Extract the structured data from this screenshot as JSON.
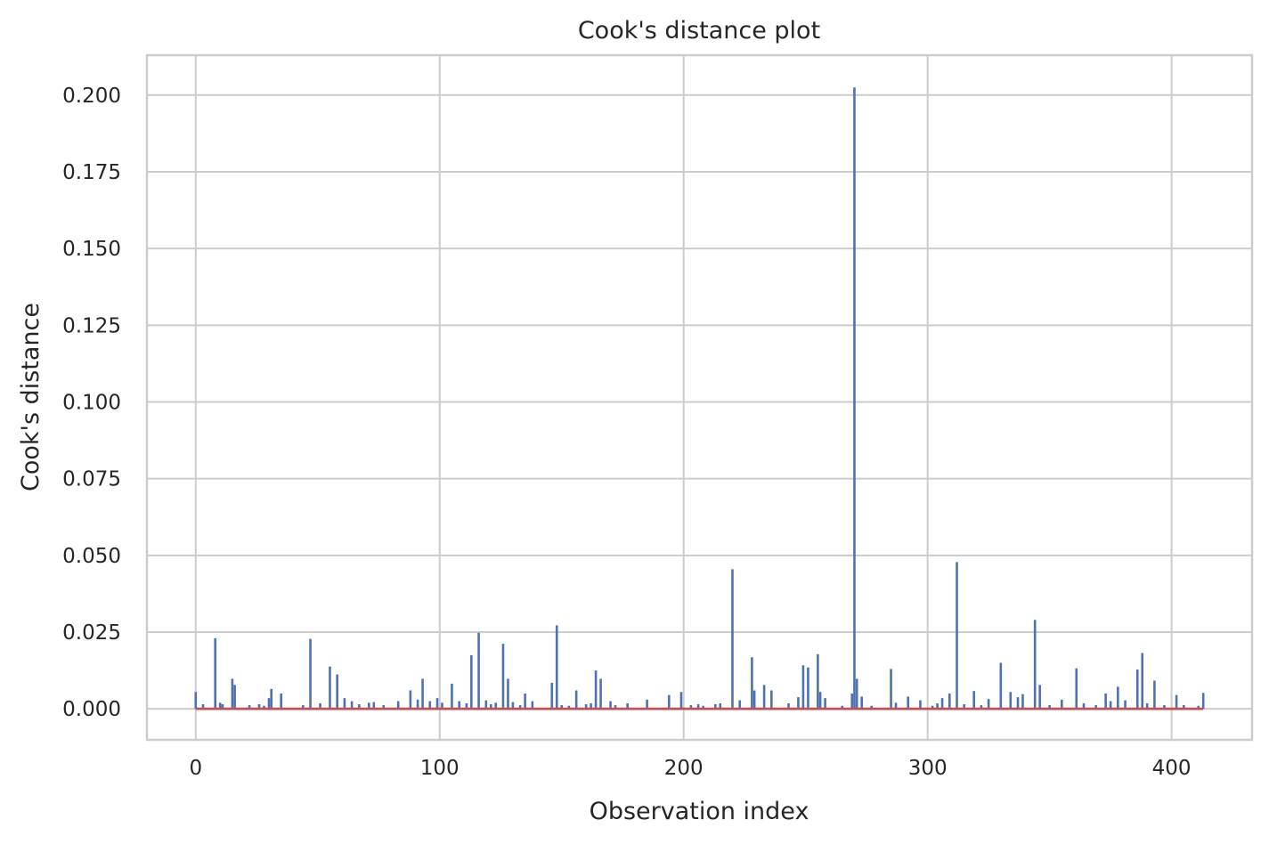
{
  "chart_data": {
    "type": "stem",
    "title": "Cook's distance plot",
    "xlabel": "Observation index",
    "ylabel": "Cook's distance",
    "xlim": [
      -20,
      433
    ],
    "ylim": [
      -0.0101,
      0.213
    ],
    "xticks": [
      0,
      100,
      200,
      300,
      400
    ],
    "xtick_labels": [
      "0",
      "100",
      "200",
      "300",
      "400"
    ],
    "yticks": [
      0.0,
      0.025,
      0.05,
      0.075,
      0.1,
      0.125,
      0.15,
      0.175,
      0.2
    ],
    "ytick_labels": [
      "0.000",
      "0.025",
      "0.050",
      "0.075",
      "0.100",
      "0.125",
      "0.150",
      "0.175",
      "0.200"
    ],
    "grid": true,
    "n_observations": 414,
    "baseline_value": 0,
    "colors": {
      "stem": "#4c72b0",
      "baseline": "#c44e52",
      "grid": "#cccccc",
      "text": "#262626"
    },
    "series": [
      {
        "points": [
          [
            0,
            0.0055
          ],
          [
            3,
            0.0015
          ],
          [
            8,
            0.023
          ],
          [
            10,
            0.002
          ],
          [
            11,
            0.0015
          ],
          [
            15,
            0.0098
          ],
          [
            16,
            0.0078
          ],
          [
            22,
            0.0012
          ],
          [
            26,
            0.0015
          ],
          [
            28,
            0.001
          ],
          [
            30,
            0.0035
          ],
          [
            31,
            0.0065
          ],
          [
            35,
            0.005
          ],
          [
            44,
            0.0012
          ],
          [
            47,
            0.0228
          ],
          [
            51,
            0.0018
          ],
          [
            55,
            0.0138
          ],
          [
            58,
            0.0112
          ],
          [
            61,
            0.0035
          ],
          [
            64,
            0.0025
          ],
          [
            67,
            0.0015
          ],
          [
            71,
            0.002
          ],
          [
            73,
            0.0022
          ],
          [
            77,
            0.0012
          ],
          [
            83,
            0.0025
          ],
          [
            88,
            0.006
          ],
          [
            91,
            0.003
          ],
          [
            93,
            0.0098
          ],
          [
            96,
            0.0025
          ],
          [
            99,
            0.0035
          ],
          [
            101,
            0.002
          ],
          [
            105,
            0.0082
          ],
          [
            108,
            0.0025
          ],
          [
            111,
            0.0018
          ],
          [
            113,
            0.0175
          ],
          [
            116,
            0.0248
          ],
          [
            119,
            0.0028
          ],
          [
            121,
            0.0015
          ],
          [
            123,
            0.002
          ],
          [
            126,
            0.0212
          ],
          [
            128,
            0.0098
          ],
          [
            130,
            0.0022
          ],
          [
            133,
            0.0012
          ],
          [
            135,
            0.005
          ],
          [
            138,
            0.0025
          ],
          [
            146,
            0.0085
          ],
          [
            148,
            0.0272
          ],
          [
            150,
            0.0012
          ],
          [
            153,
            0.001
          ],
          [
            156,
            0.006
          ],
          [
            160,
            0.0015
          ],
          [
            162,
            0.0018
          ],
          [
            164,
            0.0125
          ],
          [
            166,
            0.0098
          ],
          [
            170,
            0.0025
          ],
          [
            172,
            0.0012
          ],
          [
            177,
            0.0018
          ],
          [
            185,
            0.003
          ],
          [
            194,
            0.0045
          ],
          [
            199,
            0.0055
          ],
          [
            203,
            0.0012
          ],
          [
            206,
            0.0015
          ],
          [
            208,
            0.001
          ],
          [
            213,
            0.0015
          ],
          [
            215,
            0.0018
          ],
          [
            220,
            0.0455
          ],
          [
            223,
            0.0028
          ],
          [
            228,
            0.0168
          ],
          [
            229,
            0.006
          ],
          [
            233,
            0.0078
          ],
          [
            236,
            0.006
          ],
          [
            243,
            0.0018
          ],
          [
            247,
            0.0038
          ],
          [
            249,
            0.0142
          ],
          [
            251,
            0.0135
          ],
          [
            255,
            0.0178
          ],
          [
            256,
            0.0055
          ],
          [
            258,
            0.0035
          ],
          [
            265,
            0.001
          ],
          [
            269,
            0.005
          ],
          [
            270,
            0.2025
          ],
          [
            271,
            0.0098
          ],
          [
            273,
            0.004
          ],
          [
            277,
            0.001
          ],
          [
            285,
            0.013
          ],
          [
            287,
            0.002
          ],
          [
            292,
            0.004
          ],
          [
            297,
            0.0028
          ],
          [
            302,
            0.001
          ],
          [
            304,
            0.0018
          ],
          [
            306,
            0.0035
          ],
          [
            309,
            0.005
          ],
          [
            312,
            0.0478
          ],
          [
            315,
            0.0015
          ],
          [
            319,
            0.0058
          ],
          [
            322,
            0.0012
          ],
          [
            325,
            0.0032
          ],
          [
            330,
            0.015
          ],
          [
            334,
            0.0055
          ],
          [
            337,
            0.0038
          ],
          [
            339,
            0.0048
          ],
          [
            344,
            0.029
          ],
          [
            346,
            0.0078
          ],
          [
            350,
            0.0012
          ],
          [
            355,
            0.003
          ],
          [
            361,
            0.0132
          ],
          [
            364,
            0.0018
          ],
          [
            369,
            0.0012
          ],
          [
            373,
            0.005
          ],
          [
            375,
            0.0025
          ],
          [
            378,
            0.0072
          ],
          [
            381,
            0.0028
          ],
          [
            386,
            0.0128
          ],
          [
            388,
            0.0182
          ],
          [
            390,
            0.0018
          ],
          [
            393,
            0.0092
          ],
          [
            397,
            0.0012
          ],
          [
            402,
            0.0045
          ],
          [
            405,
            0.0012
          ],
          [
            411,
            0.001
          ],
          [
            413,
            0.0052
          ]
        ],
        "default_small_value": 0.0004
      }
    ]
  }
}
